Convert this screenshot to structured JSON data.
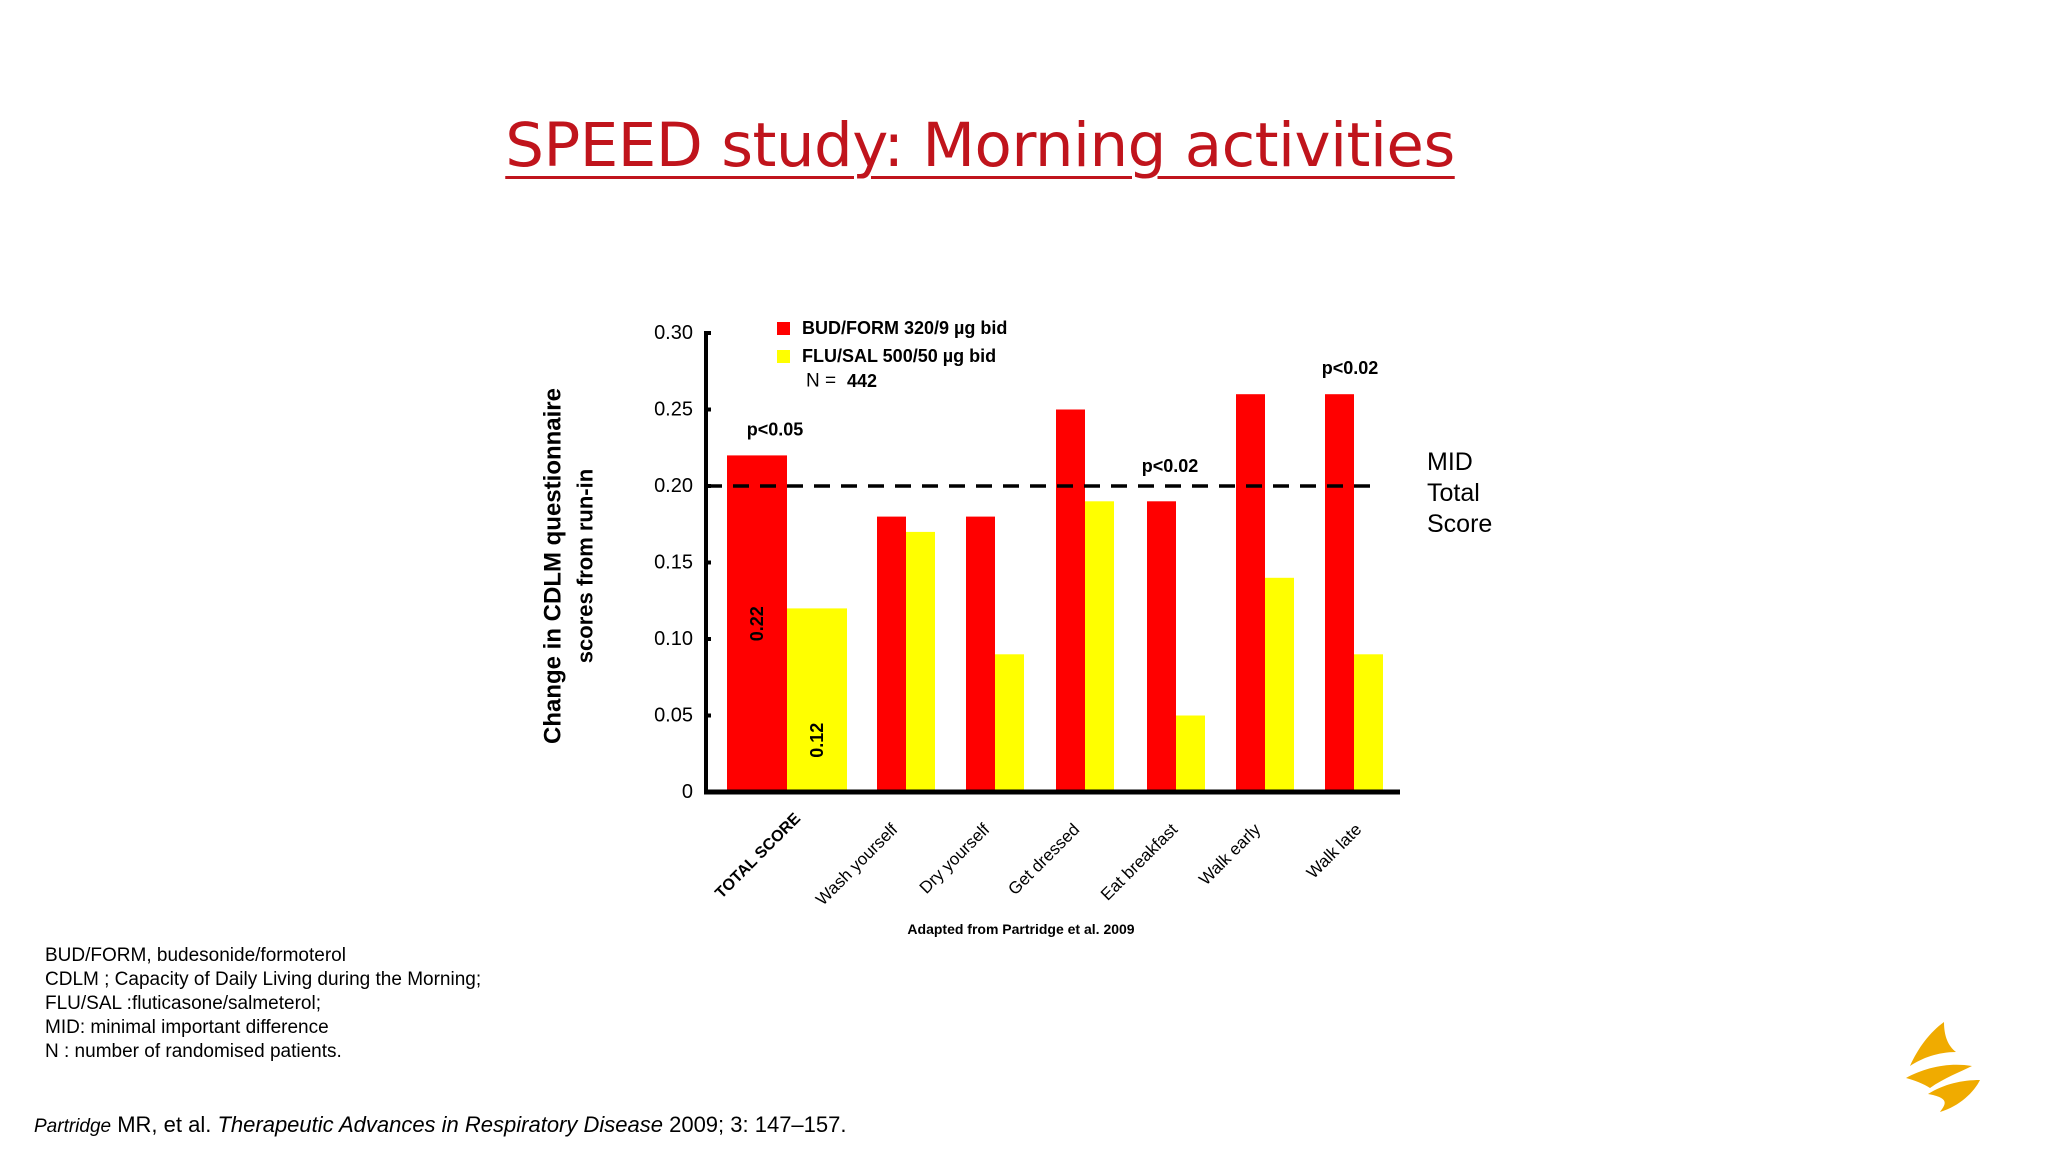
{
  "slide": {
    "title": "SPEED study: Morning activities"
  },
  "chart_data": {
    "type": "bar",
    "categories": [
      "TOTAL SCORE",
      "Wash yourself",
      "Dry yourself",
      "Get dressed",
      "Eat  breakfast",
      "Walk early",
      "Walk late"
    ],
    "series": [
      {
        "name": "BUD/FORM 320/9 µg bid",
        "color": "#ff0000",
        "values": [
          0.22,
          0.18,
          0.18,
          0.25,
          0.19,
          0.26,
          0.26
        ]
      },
      {
        "name": "FLU/SAL 500/50 µg bid",
        "color": "#ffff00",
        "values": [
          0.12,
          0.17,
          0.09,
          0.19,
          0.05,
          0.14,
          0.09
        ]
      }
    ],
    "ylabel_line1": "Change in CDLM questionnaire",
    "ylabel_line2": "scores from run-in",
    "ylim": [
      0,
      0.3
    ],
    "yticks": [
      {
        "value": 0,
        "label": "0"
      },
      {
        "value": 0.05,
        "label": "0.05"
      },
      {
        "value": 0.1,
        "label": "0.10"
      },
      {
        "value": 0.15,
        "label": "0.15"
      },
      {
        "value": 0.2,
        "label": "0.20"
      },
      {
        "value": 0.25,
        "label": "0.25"
      },
      {
        "value": 0.3,
        "label": "0.30"
      }
    ],
    "n_prefix": "N = ",
    "n_value": "442",
    "reference_line": {
      "value": 0.2,
      "style": "dashed"
    },
    "bar_value_labels": [
      {
        "series": 0,
        "category": 0,
        "text": "0.22"
      },
      {
        "series": 1,
        "category": 0,
        "text": "0.12"
      }
    ],
    "annotations": [
      {
        "text": "p<0.05",
        "category": 0,
        "value": 0.237
      },
      {
        "text": "p<0.02",
        "category": 4,
        "value": 0.213
      },
      {
        "text": "p<0.02",
        "category": 6,
        "value": 0.277
      }
    ],
    "source_note": "Adapted from Partridge et al. 2009",
    "legend_position": "top-left",
    "grid": false,
    "mid_label": [
      "MID",
      "Total",
      "Score"
    ]
  },
  "footnotes": [
    "BUD/FORM, budesonide/formoterol",
    "CDLM ; Capacity of Daily Living during the Morning;",
    "FLU/SAL :fluticasone/salmeterol;",
    "MID: minimal important difference",
    "N : number of randomised patients."
  ],
  "reference": {
    "author": "Partridge",
    "rest1": " MR, et al. ",
    "journal": "Therapeutic Advances in  Respiratory  Disease",
    "rest2": " 2009; 3: 147–157."
  },
  "logo": {
    "color": "#f0ab00"
  }
}
